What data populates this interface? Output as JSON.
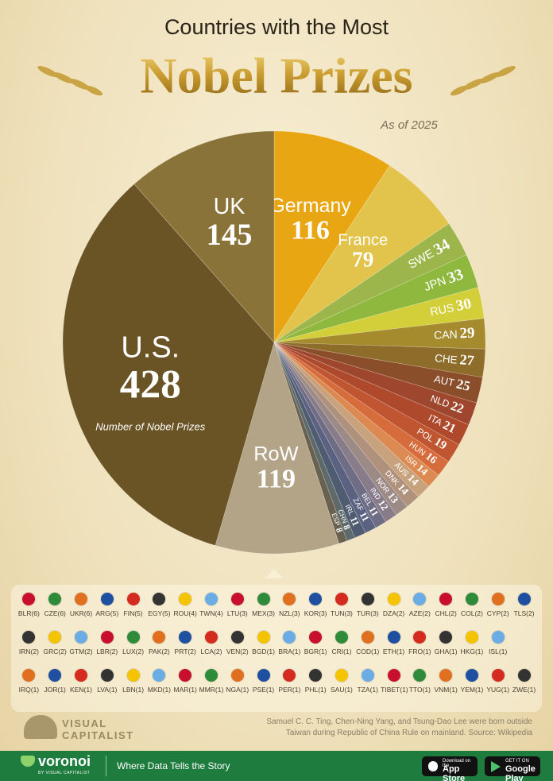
{
  "header": {
    "title_top": "Countries with the Most",
    "title_main": "Nobel Prizes",
    "subtitle": "As of 2025"
  },
  "chart_data": {
    "type": "pie",
    "categories": [
      "Germany",
      "France",
      "SWE",
      "JPN",
      "RUS",
      "CAN",
      "CHE",
      "AUT",
      "NLD",
      "ITA",
      "POL",
      "HUN",
      "ISR",
      "AUS",
      "DNK",
      "NOR",
      "IND",
      "BEL",
      "ZAF",
      "IRL",
      "CHN",
      "ESP",
      "RoW",
      "U.S.",
      "UK"
    ],
    "values": [
      116,
      79,
      34,
      33,
      30,
      29,
      27,
      25,
      22,
      21,
      19,
      16,
      14,
      14,
      14,
      13,
      12,
      11,
      11,
      11,
      8,
      8,
      119,
      428,
      145
    ],
    "colors": [
      "#e9a613",
      "#e2c44c",
      "#9cb64c",
      "#8fb83e",
      "#d3cf3a",
      "#a58b2e",
      "#8e6c2a",
      "#8a4e2a",
      "#9f472e",
      "#ae4a2b",
      "#bf5631",
      "#d66b3b",
      "#dd8a52",
      "#c7a27c",
      "#b0917c",
      "#9c8a86",
      "#887c8a",
      "#6f6d86",
      "#5b6180",
      "#4f5b70",
      "#5e6a6a",
      "#6a6050",
      "#b3a488",
      "#6a5425",
      "#8a7339"
    ],
    "annotation": "Number of Nobel Prizes"
  },
  "other_countries": {
    "rows": [
      [
        "BLR(6)",
        "CZE(6)",
        "UKR(6)",
        "ARG(5)",
        "FIN(5)",
        "EGY(5)",
        "ROU(4)",
        "TWN(4)",
        "LTU(3)",
        "MEX(3)",
        "NZL(3)",
        "KOR(3)",
        "TUN(3)",
        "TUR(3)",
        "DZA(2)",
        "AZE(2)",
        "CHL(2)",
        "COL(2)",
        "CYP(2)",
        "TLS(2)"
      ],
      [
        "IRN(2)",
        "GRC(2)",
        "GTM(2)",
        "LBR(2)",
        "LUX(2)",
        "PAK(2)",
        "PRT(2)",
        "LCA(2)",
        "VEN(2)",
        "BGD(1)",
        "BRA(1)",
        "BGR(1)",
        "CRI(1)",
        "COD(1)",
        "ETH(1)",
        "FRO(1)",
        "GHA(1)",
        "HKG(1)",
        "ISL(1)"
      ],
      [
        "IRQ(1)",
        "JOR(1)",
        "KEN(1)",
        "LVA(1)",
        "LBN(1)",
        "MKD(1)",
        "MAR(1)",
        "MMR(1)",
        "NGA(1)",
        "PSE(1)",
        "PER(1)",
        "PHL(1)",
        "SAU(1)",
        "TZA(1)",
        "TIBET(1)",
        "TTO(1)",
        "VNM(1)",
        "YEM(1)",
        "YUG(1)",
        "ZWE(1)"
      ]
    ]
  },
  "footer": {
    "brand": "VISUAL CAPITALIST",
    "note": "Samuel C. C. Ting, Chen-Ning Yang, and Tsung-Dao Lee were born outside Taiwan during Republic of China Rule on mainland. Source: Wikipedia",
    "bar_brand": "voronoi",
    "bar_brand_sub": "BY VISUAL CAPITALIST",
    "tagline": "Where Data Tells the Story",
    "appstore_top": "Download on the",
    "appstore": "App Store",
    "gplay_top": "GET IT ON",
    "gplay": "Google Play"
  }
}
